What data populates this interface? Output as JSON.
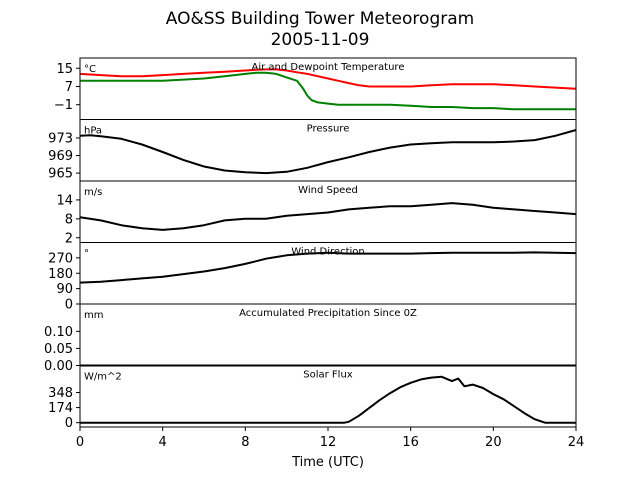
{
  "figure": {
    "title": "AO&SS Building Tower Meteorogram",
    "subtitle": "2005-11-09",
    "xlabel": "Time (UTC)"
  },
  "chart_data": [
    {
      "type": "line",
      "id": "temp",
      "title": "Air and Dewpoint Temperature",
      "unit": "°C",
      "ylim": [
        -7.5,
        19.5
      ],
      "yticks": [
        15,
        7,
        -1
      ],
      "ytick_labels": [
        "15",
        "7",
        "−1"
      ],
      "series": [
        {
          "color": "#ff0000",
          "x": [
            0,
            1,
            2,
            3,
            4,
            5,
            6,
            7,
            8,
            8.5,
            9,
            9.5,
            10,
            10.5,
            11,
            11.5,
            12,
            12.5,
            13,
            13.5,
            14,
            15,
            16,
            17,
            18,
            19,
            20,
            21,
            22,
            23,
            24
          ],
          "y": [
            12.5,
            12,
            11.5,
            11.5,
            12,
            12.5,
            13,
            13.5,
            14,
            14.3,
            14.5,
            14.5,
            14,
            13.2,
            12.5,
            11.5,
            10.5,
            9.5,
            8.5,
            7.5,
            7,
            7,
            7,
            7.5,
            8,
            8,
            8,
            7.5,
            7,
            6.5,
            6
          ]
        },
        {
          "color": "#008000",
          "x": [
            0,
            1,
            2,
            3,
            4,
            5,
            6,
            7,
            8,
            8.5,
            9,
            9.5,
            10,
            10.5,
            10.8,
            11,
            11.2,
            11.5,
            12,
            12.5,
            13,
            14,
            15,
            16,
            17,
            18,
            19,
            20,
            21,
            22,
            23,
            24
          ],
          "y": [
            9.5,
            9.5,
            9.5,
            9.5,
            9.5,
            10,
            10.5,
            11.5,
            12.5,
            13,
            13,
            12.5,
            11,
            9.5,
            6,
            3,
            1,
            0,
            -0.5,
            -1,
            -1,
            -1,
            -1,
            -1.5,
            -2,
            -2,
            -2.5,
            -2.5,
            -3,
            -3,
            -3,
            -3
          ]
        }
      ]
    },
    {
      "type": "line",
      "id": "pressure",
      "title": "Pressure",
      "unit": "hPa",
      "ylim": [
        963.2,
        977.2
      ],
      "yticks": [
        973,
        969,
        965
      ],
      "ytick_labels": [
        "973",
        "969",
        "965"
      ],
      "series": [
        {
          "color": "#000000",
          "x": [
            0,
            0.5,
            1,
            2,
            3,
            4,
            5,
            6,
            7,
            8,
            9,
            10,
            11,
            12,
            13,
            14,
            15,
            16,
            17,
            18,
            19,
            20,
            21,
            22,
            23,
            24
          ],
          "y": [
            973.5,
            973.6,
            973.4,
            972.8,
            971.5,
            969.8,
            968,
            966.5,
            965.6,
            965.2,
            965,
            965.3,
            966.2,
            967.5,
            968.6,
            969.8,
            970.8,
            971.5,
            971.8,
            972,
            972,
            972,
            972.2,
            972.5,
            973.5,
            974.8
          ]
        }
      ]
    },
    {
      "type": "line",
      "id": "wind_speed",
      "title": "Wind Speed",
      "unit": "m/s",
      "ylim": [
        0.5,
        20
      ],
      "yticks": [
        14,
        8,
        2
      ],
      "ytick_labels": [
        "14",
        "8",
        "2"
      ],
      "series": [
        {
          "color": "#000000",
          "x": [
            0,
            1,
            2,
            3,
            4,
            5,
            6,
            7,
            8,
            9,
            10,
            11,
            12,
            13,
            14,
            15,
            16,
            17,
            18,
            19,
            20,
            21,
            22,
            23,
            24
          ],
          "y": [
            8.5,
            7.5,
            6,
            5,
            4.5,
            5,
            6,
            7.5,
            8,
            8,
            9,
            9.5,
            10,
            11,
            11.5,
            12,
            12,
            12.5,
            13,
            12.5,
            11.5,
            11,
            10.5,
            10,
            9.5
          ]
        }
      ]
    },
    {
      "type": "line",
      "id": "wind_dir",
      "title": "Wind Direction",
      "unit": "°",
      "ylim": [
        0,
        360
      ],
      "yticks": [
        270,
        180,
        90,
        0
      ],
      "ytick_labels": [
        "270",
        "180",
        "90",
        "0"
      ],
      "series": [
        {
          "color": "#000000",
          "x": [
            0,
            1,
            2,
            3,
            4,
            5,
            6,
            7,
            8,
            8.5,
            9,
            9.5,
            10,
            11,
            12,
            13,
            14,
            15,
            16,
            17,
            18,
            19,
            20,
            21,
            22,
            23,
            24
          ],
          "y": [
            125,
            130,
            140,
            150,
            160,
            175,
            190,
            210,
            235,
            250,
            265,
            275,
            285,
            295,
            300,
            295,
            295,
            295,
            295,
            298,
            300,
            300,
            300,
            300,
            302,
            300,
            298
          ]
        }
      ]
    },
    {
      "type": "line",
      "id": "precip",
      "title": "Accumulated Precipitation Since 0Z",
      "unit": "mm",
      "ylim": [
        0,
        0.18
      ],
      "yticks": [
        0.1,
        0.05,
        0.0
      ],
      "ytick_labels": [
        "0.10",
        "0.05",
        "0.00"
      ],
      "series": [
        {
          "color": "#000000",
          "x": [
            0,
            24
          ],
          "y": [
            0,
            0
          ]
        }
      ]
    },
    {
      "type": "line",
      "id": "solar",
      "title": "Solar Flux",
      "unit": "W/m^2",
      "ylim": [
        -50,
        660
      ],
      "yticks": [
        348,
        174,
        0
      ],
      "ytick_labels": [
        "348",
        "174",
        "0"
      ],
      "series": [
        {
          "color": "#000000",
          "x": [
            0,
            12.8,
            13,
            13.5,
            14,
            14.5,
            15,
            15.5,
            16,
            16.5,
            17,
            17.5,
            18,
            18.3,
            18.6,
            19,
            19.5,
            20,
            20.5,
            21,
            21.5,
            22,
            22.5,
            24
          ],
          "y": [
            0,
            0,
            10,
            80,
            170,
            260,
            340,
            410,
            460,
            500,
            520,
            530,
            480,
            510,
            420,
            440,
            400,
            330,
            270,
            190,
            110,
            40,
            0,
            0
          ]
        }
      ]
    }
  ],
  "x_axis": {
    "xlim": [
      0,
      24
    ],
    "ticks": [
      0,
      4,
      8,
      12,
      16,
      20,
      24
    ],
    "tick_labels": [
      "0",
      "4",
      "8",
      "12",
      "16",
      "20",
      "24"
    ]
  }
}
